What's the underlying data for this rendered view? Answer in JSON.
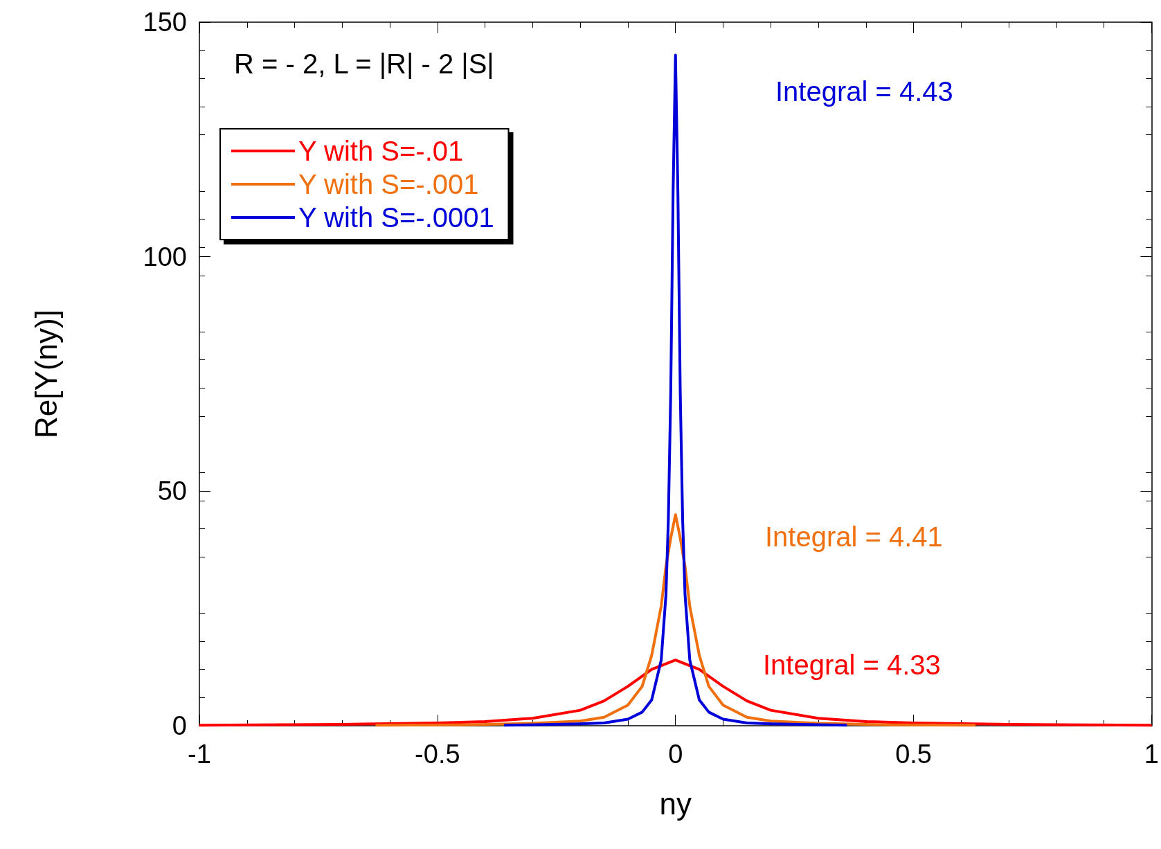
{
  "chart_data": {
    "type": "line",
    "xlabel": "ny",
    "ylabel": "Re[Y(ny)]",
    "xlim": [
      -1,
      1
    ],
    "xticks": [
      -1,
      -0.5,
      0,
      0.5,
      1
    ],
    "ylim": [
      0,
      150
    ],
    "yticks": [
      0,
      50,
      100,
      150
    ],
    "grid": false,
    "legend": "top left",
    "marker": "none",
    "line_style": "solid",
    "annotations": [
      "R = - 2, L = |R| - 2 |S|",
      "Integral = 4.43",
      "Integral = 4.41",
      "Integral = 4.33"
    ],
    "series": [
      {
        "name": "Y with S=-.01",
        "color": "#ff0000",
        "x": [
          -1,
          -0.7,
          -0.5,
          -0.4,
          -0.3,
          -0.2,
          -0.15,
          -0.1,
          -0.05,
          0,
          0.05,
          0.1,
          0.15,
          0.2,
          0.3,
          0.4,
          0.5,
          0.7,
          1
        ],
        "values": [
          0.1,
          0.3,
          0.6,
          0.9,
          1.6,
          3.3,
          5.3,
          8.4,
          12,
          14,
          12,
          8.4,
          5.3,
          3.3,
          1.6,
          0.9,
          0.6,
          0.3,
          0.1
        ]
      },
      {
        "name": "Y with S=-.001",
        "color": "#f07010",
        "x": [
          -0.63,
          -0.45,
          -0.3,
          -0.2,
          -0.15,
          -0.1,
          -0.07,
          -0.05,
          -0.03,
          -0.02,
          -0.01,
          0,
          0.01,
          0.02,
          0.03,
          0.05,
          0.07,
          0.1,
          0.15,
          0.2,
          0.3,
          0.45,
          0.63
        ],
        "values": [
          0.1,
          0.2,
          0.5,
          1,
          1.8,
          4.4,
          8.4,
          15,
          25.5,
          34,
          40,
          45,
          40,
          34,
          25.5,
          15,
          8.4,
          4.4,
          1.8,
          1,
          0.5,
          0.2,
          0.1
        ]
      },
      {
        "name": "Y with S=-.0001",
        "color": "#0000d8",
        "x": [
          -0.36,
          -0.2,
          -0.15,
          -0.1,
          -0.07,
          -0.05,
          -0.03,
          -0.02,
          -0.015,
          -0.01,
          -0.005,
          0,
          0.005,
          0.01,
          0.015,
          0.02,
          0.03,
          0.05,
          0.07,
          0.1,
          0.15,
          0.2,
          0.36
        ],
        "values": [
          0.1,
          0.4,
          0.6,
          1.4,
          2.9,
          5.5,
          14,
          28,
          44,
          71,
          114,
          143,
          114,
          71,
          44,
          28,
          14,
          5.5,
          2.9,
          1.4,
          0.6,
          0.4,
          0.1
        ]
      }
    ]
  }
}
